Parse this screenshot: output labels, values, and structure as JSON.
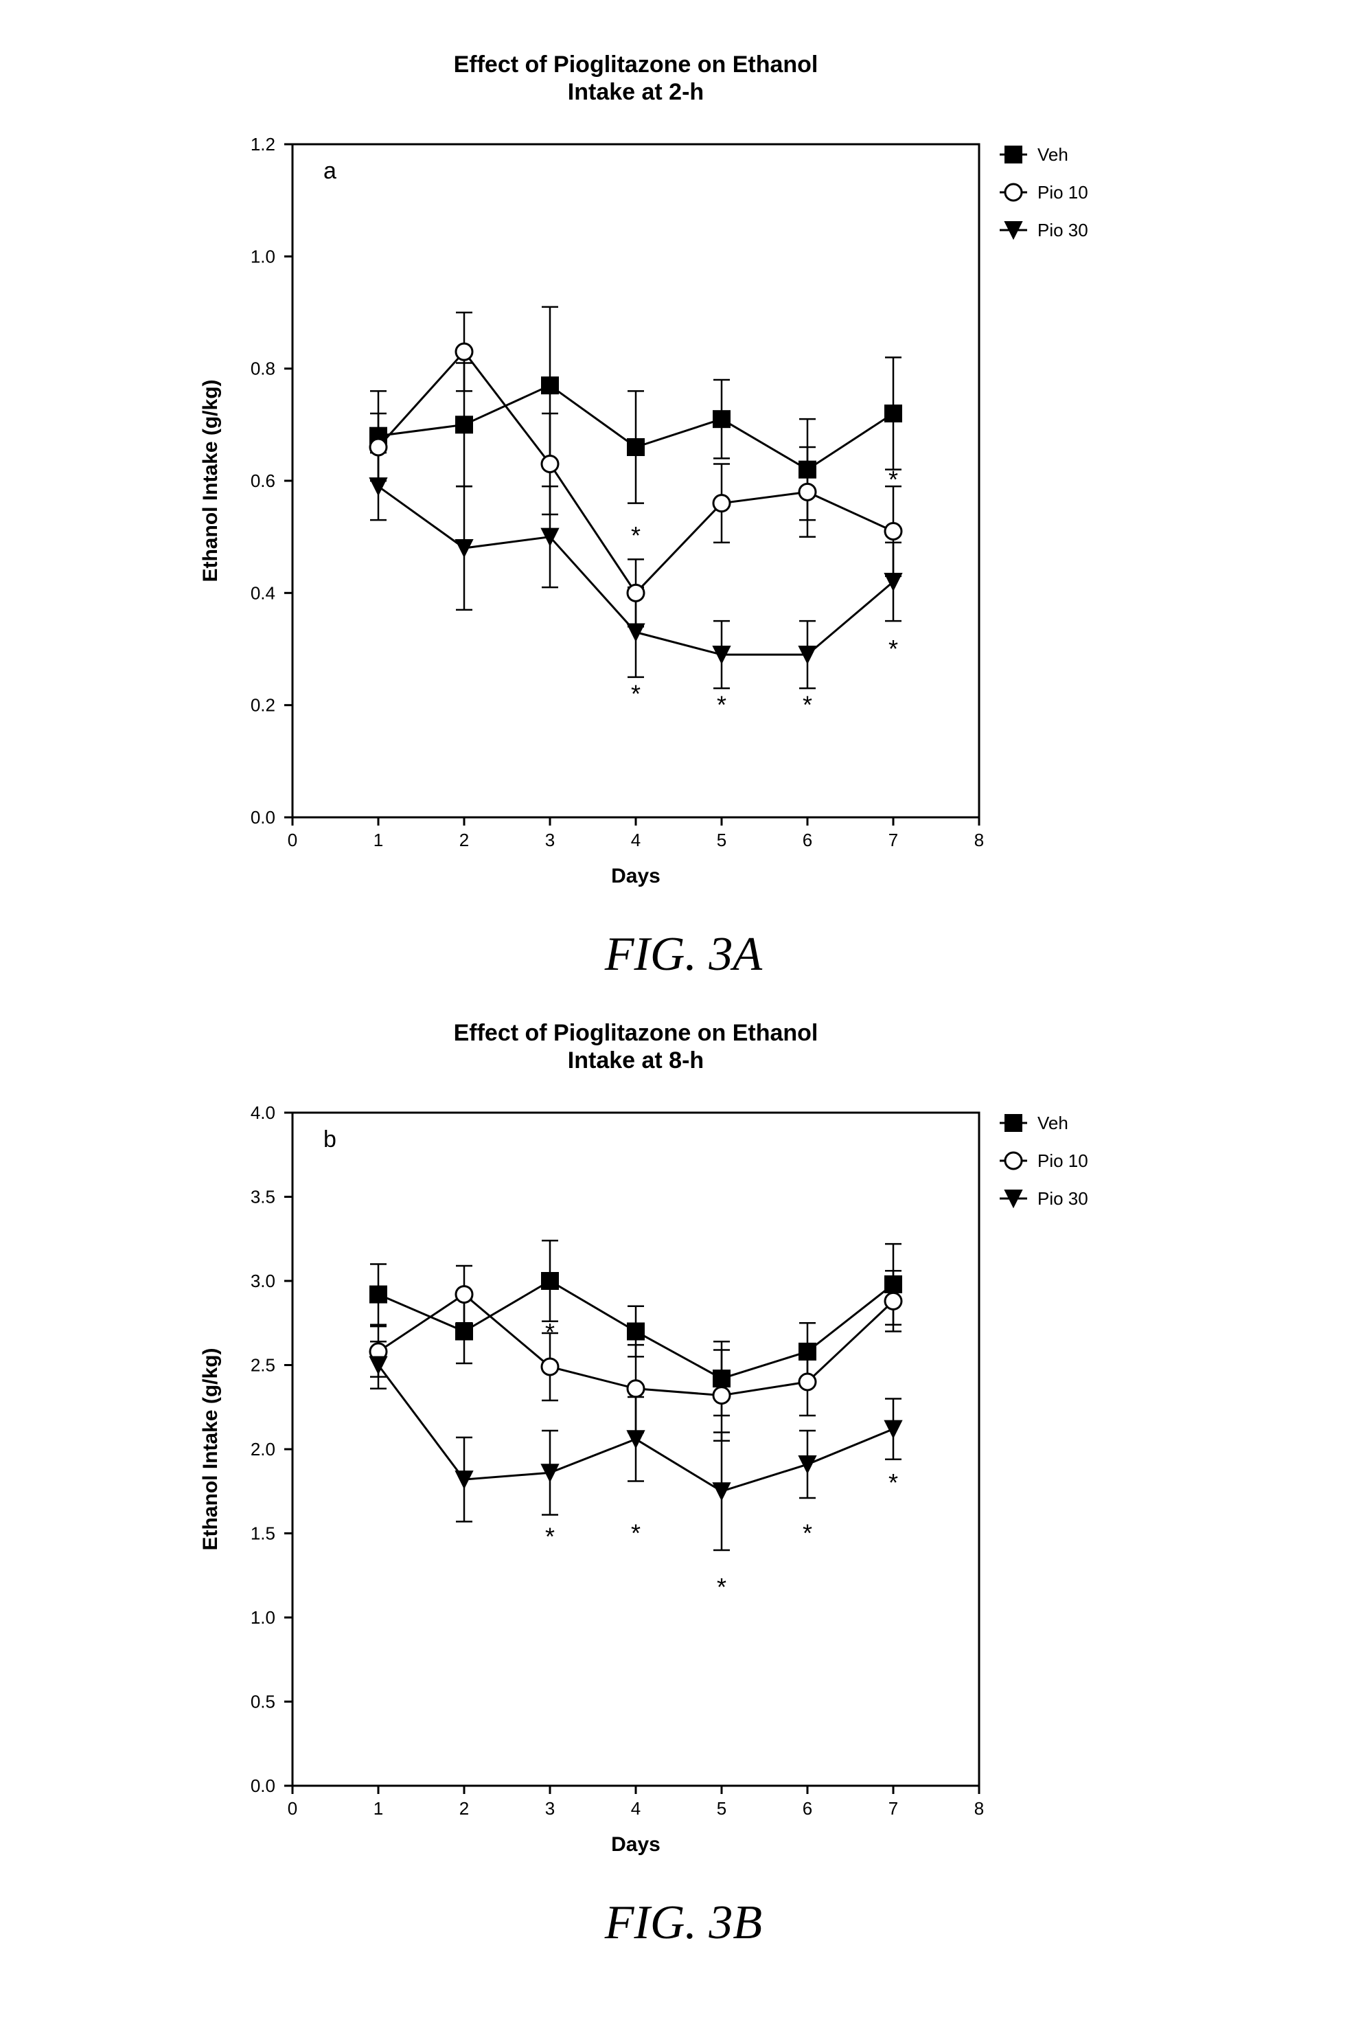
{
  "global": {
    "background_color": "#ffffff",
    "axis_color": "#000000",
    "tick_color": "#000000",
    "text_color": "#000000",
    "caption_font": "Times New Roman",
    "caption_style": "italic"
  },
  "charts": {
    "a": {
      "caption": "FIG.  3A",
      "panel_letter": "a",
      "type": "line",
      "title": "Effect of Pioglitazone on Ethanol\nIntake at 2-h",
      "title_fontsize": 34,
      "title_weight": "bold",
      "panel_letter_fontsize": 34,
      "xlabel": "Days",
      "ylabel": "Ethanol Intake (g/kg)",
      "label_fontsize": 30,
      "label_weight": "bold",
      "tick_fontsize": 26,
      "xlim": [
        0,
        8
      ],
      "xticks": [
        0,
        1,
        2,
        3,
        4,
        5,
        6,
        7,
        8
      ],
      "ylim": [
        0.0,
        1.2
      ],
      "yticks": [
        0.0,
        0.2,
        0.4,
        0.6,
        0.8,
        1.0,
        1.2
      ],
      "line_color": "#000000",
      "line_width": 3,
      "marker_size": 12,
      "error_cap_width": 12,
      "grid": false,
      "legend": {
        "background": "#ffffff",
        "position": "right",
        "fontsize": 26,
        "items": [
          {
            "key": "veh",
            "label": "Veh",
            "marker": "square-filled"
          },
          {
            "key": "pio10",
            "label": "Pio 10",
            "marker": "circle-open"
          },
          {
            "key": "pio30",
            "label": "Pio 30",
            "marker": "triangle-down-filled"
          }
        ]
      },
      "series": {
        "veh": {
          "marker": "square-filled",
          "color": "#000000",
          "fill": "#000000",
          "x": [
            1,
            2,
            3,
            4,
            5,
            6,
            7
          ],
          "y": [
            0.68,
            0.7,
            0.77,
            0.66,
            0.71,
            0.62,
            0.72
          ],
          "err": [
            0.08,
            0.11,
            0.14,
            0.1,
            0.07,
            0.09,
            0.1
          ]
        },
        "pio10": {
          "marker": "circle-open",
          "color": "#000000",
          "fill": "#ffffff",
          "x": [
            1,
            2,
            3,
            4,
            5,
            6,
            7
          ],
          "y": [
            0.66,
            0.83,
            0.63,
            0.4,
            0.56,
            0.58,
            0.51
          ],
          "err": [
            0.06,
            0.07,
            0.09,
            0.06,
            0.07,
            0.08,
            0.08
          ],
          "sig_idx": []
        },
        "pio30": {
          "marker": "triangle-down-filled",
          "color": "#000000",
          "fill": "#000000",
          "x": [
            1,
            2,
            3,
            4,
            5,
            6,
            7
          ],
          "y": [
            0.59,
            0.48,
            0.5,
            0.33,
            0.29,
            0.29,
            0.42
          ],
          "err": [
            0.06,
            0.11,
            0.09,
            0.08,
            0.06,
            0.06,
            0.07
          ],
          "sig_idx": [
            3,
            4,
            5,
            6
          ]
        }
      },
      "sig_markers": [
        {
          "x": 4,
          "y_below": 0.22,
          "y_above": 0.48
        },
        {
          "x": 5,
          "y_below": 0.2
        },
        {
          "x": 6,
          "y_below": 0.2
        },
        {
          "x": 7,
          "y_below": 0.3,
          "y_above": 0.58
        }
      ]
    },
    "b": {
      "caption": "FIG.  3B",
      "panel_letter": "b",
      "type": "line",
      "title": "Effect of Pioglitazone on Ethanol\nIntake at 8-h",
      "title_fontsize": 34,
      "title_weight": "bold",
      "panel_letter_fontsize": 34,
      "xlabel": "Days",
      "ylabel": "Ethanol Intake (g/kg)",
      "label_fontsize": 30,
      "label_weight": "bold",
      "tick_fontsize": 26,
      "xlim": [
        0,
        8
      ],
      "xticks": [
        0,
        1,
        2,
        3,
        4,
        5,
        6,
        7,
        8
      ],
      "ylim": [
        0.0,
        4.0
      ],
      "yticks": [
        0.0,
        0.5,
        1.0,
        1.5,
        2.0,
        2.5,
        3.0,
        3.5,
        4.0
      ],
      "line_color": "#000000",
      "line_width": 3,
      "marker_size": 12,
      "error_cap_width": 12,
      "grid": false,
      "legend": {
        "background": "#ffffff",
        "position": "right",
        "fontsize": 26,
        "items": [
          {
            "key": "veh",
            "label": "Veh",
            "marker": "square-filled"
          },
          {
            "key": "pio10",
            "label": "Pio 10",
            "marker": "circle-open"
          },
          {
            "key": "pio30",
            "label": "Pio 30",
            "marker": "triangle-down-filled"
          }
        ]
      },
      "series": {
        "veh": {
          "marker": "square-filled",
          "color": "#000000",
          "fill": "#000000",
          "x": [
            1,
            2,
            3,
            4,
            5,
            6,
            7
          ],
          "y": [
            2.92,
            2.7,
            3.0,
            2.7,
            2.42,
            2.58,
            2.98
          ],
          "err": [
            0.18,
            0.19,
            0.24,
            0.15,
            0.22,
            0.17,
            0.24
          ]
        },
        "pio10": {
          "marker": "circle-open",
          "color": "#000000",
          "fill": "#ffffff",
          "x": [
            1,
            2,
            3,
            4,
            5,
            6,
            7
          ],
          "y": [
            2.58,
            2.92,
            2.49,
            2.36,
            2.32,
            2.4,
            2.88
          ],
          "err": [
            0.15,
            0.17,
            0.2,
            0.26,
            0.27,
            0.2,
            0.18
          ]
        },
        "pio30": {
          "marker": "triangle-down-filled",
          "color": "#000000",
          "fill": "#000000",
          "x": [
            1,
            2,
            3,
            4,
            5,
            6,
            7
          ],
          "y": [
            2.5,
            1.82,
            1.86,
            2.06,
            1.75,
            1.91,
            2.12
          ],
          "err": [
            0.14,
            0.25,
            0.25,
            0.25,
            0.35,
            0.2,
            0.18
          ]
        }
      },
      "sig_markers": [
        {
          "x": 3,
          "y_below": 1.48,
          "y_above": 2.62
        },
        {
          "x": 4,
          "y_below": 1.5
        },
        {
          "x": 5,
          "y_below": 1.18
        },
        {
          "x": 6,
          "y_below": 1.5
        },
        {
          "x": 7,
          "y_below": 1.8
        }
      ]
    }
  }
}
